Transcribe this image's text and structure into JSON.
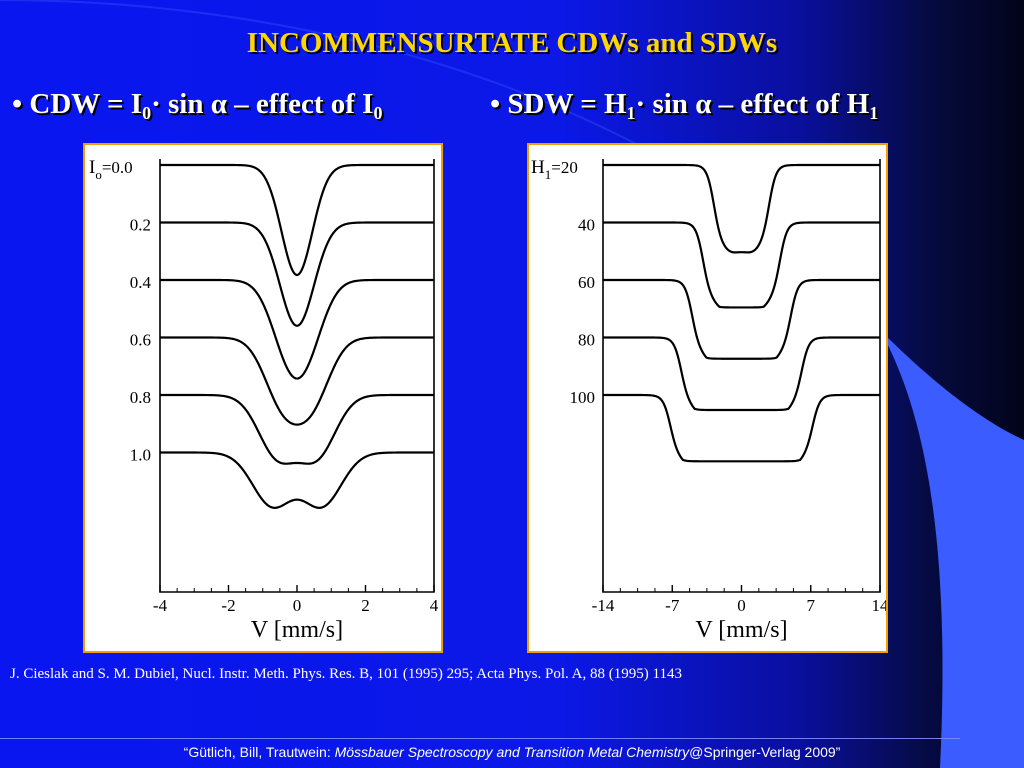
{
  "slide": {
    "title": "INCOMMENSURTATE CDWs and SDWs",
    "bullets": {
      "left": {
        "prefix": "• CDW = I",
        "sub1": "0",
        "mid": "· sin ",
        "alpha": "α",
        "suffix": " – effect of I",
        "sub2": "0"
      },
      "right": {
        "prefix": "• SDW = H",
        "sub1": "1",
        "mid": "· sin ",
        "alpha": "α",
        "suffix": " – effect of H",
        "sub2": "1"
      }
    },
    "reference": "J. Cieslak and S. M. Dubiel, Nucl. Instr. Meth. Phys. Res. B, 101 (1995) 295; Acta Phys. Pol. A, 88 (1995) 1143",
    "footer": {
      "pre": "“Gütlich, Bill, Trautwein: ",
      "italic": "Mössbauer Spectroscopy and Transition Metal Chemistry",
      "post": "@Springer-Verlag 2009”"
    },
    "colors": {
      "title": "#ffd700",
      "background": "#0a16f0",
      "panel_border": "#f0a000",
      "arc": "#3b5cff"
    }
  },
  "chart_data": [
    {
      "type": "line",
      "xlabel": "V [mm/s]",
      "xlim": [
        -4,
        4
      ],
      "xticks": [
        "-4",
        "-2",
        "0",
        "2",
        "4"
      ],
      "param_symbol": "I",
      "param_sub": "o",
      "series": [
        {
          "name": "=0.0",
          "values": [
            0.0
          ]
        },
        {
          "name": "0.2",
          "values": [
            0.2
          ]
        },
        {
          "name": "0.4",
          "values": [
            0.4
          ]
        },
        {
          "name": "0.6",
          "values": [
            0.6
          ]
        },
        {
          "name": "0.8",
          "values": [
            0.8
          ]
        },
        {
          "name": "1.0",
          "values": [
            1.0
          ]
        }
      ]
    },
    {
      "type": "line",
      "xlabel": "V [mm/s]",
      "xlim": [
        -14,
        14
      ],
      "xticks": [
        "-14",
        "-7",
        "0",
        "7",
        "14"
      ],
      "param_symbol": "H",
      "param_sub": "1",
      "series": [
        {
          "name": "=20",
          "values": [
            20
          ]
        },
        {
          "name": "40",
          "values": [
            40
          ]
        },
        {
          "name": "60",
          "values": [
            60
          ]
        },
        {
          "name": "80",
          "values": [
            80
          ]
        },
        {
          "name": "100",
          "values": [
            100
          ]
        }
      ]
    }
  ]
}
